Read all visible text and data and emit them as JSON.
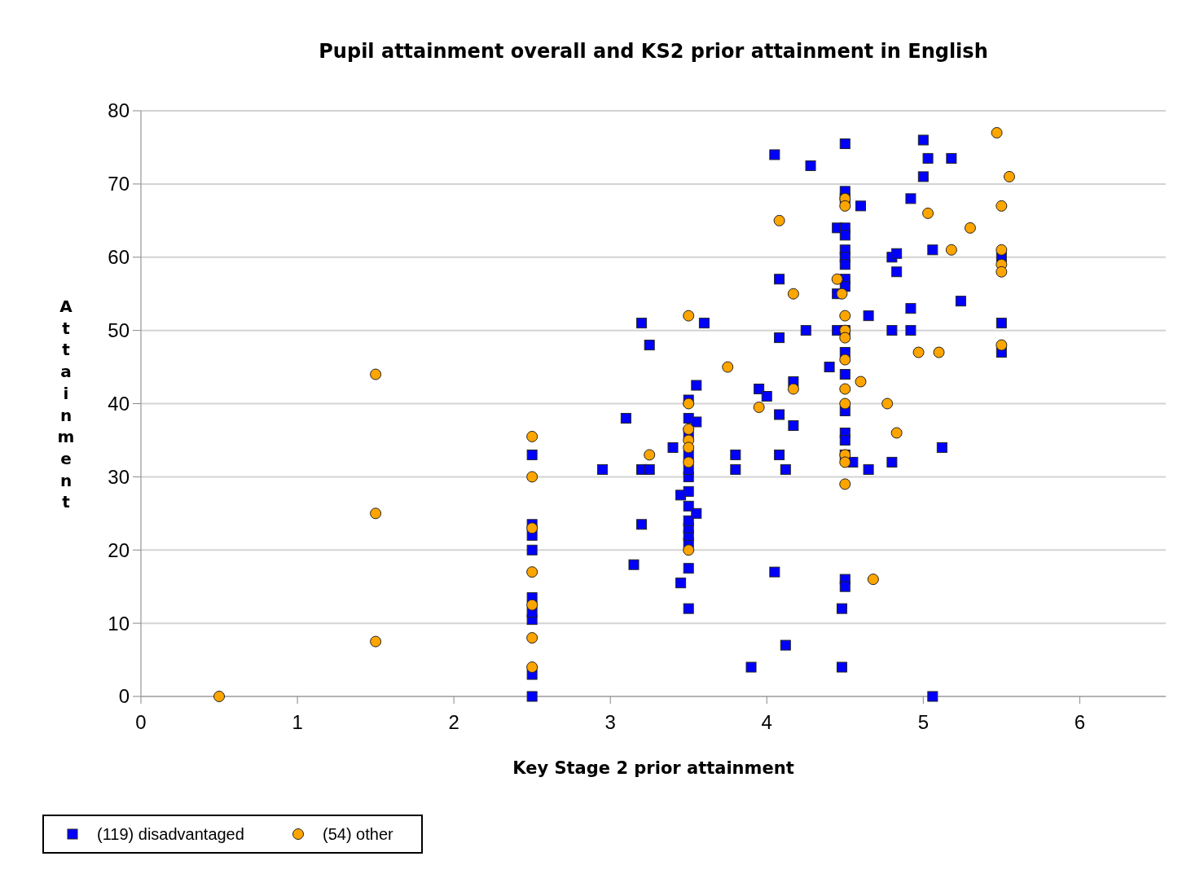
{
  "chart_data": {
    "type": "scatter",
    "title": "Pupil attainment overall and KS2 prior attainment in English",
    "xlabel": "Key Stage 2 prior attainment",
    "ylabel": "Attainment",
    "xlim": [
      0,
      6.55
    ],
    "xticks": [
      0,
      1,
      2,
      3,
      4,
      5,
      6
    ],
    "ylim": [
      0,
      80
    ],
    "yticks": [
      0,
      10,
      20,
      30,
      40,
      50,
      60,
      70,
      80
    ],
    "grid": "y",
    "legend": "bottom left",
    "series": [
      {
        "name": "(119) disadvantaged",
        "color": "#0000ff",
        "marker": "square",
        "x": [
          2.5,
          2.5,
          2.5,
          2.5,
          2.5,
          2.5,
          2.5,
          2.5,
          2.5,
          2.95,
          3.1,
          3.15,
          3.2,
          3.2,
          3.2,
          3.25,
          3.25,
          3.4,
          3.45,
          3.45,
          3.5,
          3.5,
          3.5,
          3.5,
          3.5,
          3.5,
          3.5,
          3.5,
          3.5,
          3.5,
          3.5,
          3.5,
          3.5,
          3.5,
          3.55,
          3.55,
          3.55,
          3.6,
          3.8,
          3.8,
          3.9,
          3.95,
          4.0,
          4.05,
          4.05,
          4.08,
          4.08,
          4.08,
          4.08,
          4.12,
          4.12,
          4.17,
          4.17,
          4.25,
          4.28,
          4.4,
          4.45,
          4.45,
          4.45,
          4.5,
          4.5,
          4.5,
          4.5,
          4.5,
          4.5,
          4.5,
          4.5,
          4.5,
          4.5,
          4.5,
          4.5,
          4.5,
          4.5,
          4.5,
          4.5,
          4.5,
          4.5,
          4.5,
          4.48,
          4.48,
          4.55,
          4.6,
          4.65,
          4.65,
          4.8,
          4.8,
          4.8,
          4.83,
          4.83,
          4.92,
          4.92,
          4.92,
          5.0,
          5.0,
          5.03,
          5.06,
          5.06,
          5.12,
          5.18,
          5.24,
          5.5,
          5.5,
          5.5
        ],
        "values": [
          0,
          3,
          10.5,
          11.5,
          13.5,
          20,
          22,
          23.5,
          33,
          31,
          38,
          18,
          31,
          23.5,
          51,
          31,
          48,
          34,
          27.5,
          15.5,
          12,
          17.5,
          21,
          22,
          23,
          24,
          26,
          28,
          30,
          31,
          33,
          36,
          38,
          40.5,
          25,
          37.5,
          42.5,
          51,
          33,
          31,
          4,
          42,
          41,
          74,
          17,
          57,
          49,
          38.5,
          33,
          31,
          7,
          43,
          37,
          50,
          72.5,
          45,
          55,
          64,
          50,
          75.5,
          69,
          68,
          64,
          63,
          61,
          60,
          59,
          57,
          56,
          50,
          47,
          44,
          39,
          36,
          35,
          33,
          16,
          15,
          12,
          4,
          32,
          67,
          52,
          31,
          60,
          50,
          32,
          60.5,
          58,
          68,
          53,
          50,
          76,
          71,
          73.5,
          61,
          0,
          34,
          73.5,
          54,
          60,
          51,
          47
        ]
      },
      {
        "name": "(54) other",
        "color": "#ffa500",
        "marker": "circle",
        "x": [
          0.5,
          1.5,
          1.5,
          1.5,
          2.5,
          2.5,
          2.5,
          2.5,
          2.5,
          2.5,
          2.5,
          3.25,
          3.5,
          3.5,
          3.5,
          3.5,
          3.5,
          3.5,
          3.5,
          3.75,
          3.95,
          4.08,
          4.17,
          4.17,
          4.45,
          4.48,
          4.5,
          4.5,
          4.5,
          4.5,
          4.5,
          4.5,
          4.5,
          4.5,
          4.5,
          4.5,
          4.5,
          4.6,
          4.68,
          4.77,
          4.83,
          4.97,
          5.03,
          5.1,
          5.18,
          5.3,
          5.47,
          5.5,
          5.5,
          5.5,
          5.5,
          5.5,
          5.55
        ],
        "values": [
          0,
          44,
          25,
          7.5,
          35.5,
          30,
          23,
          17,
          12.5,
          8,
          4,
          33,
          52,
          40,
          36.5,
          35,
          34,
          32,
          20,
          45,
          39.5,
          65,
          55,
          42,
          57,
          55,
          68,
          67,
          52,
          50,
          49,
          46,
          42,
          40,
          33,
          32,
          29,
          43,
          16,
          40,
          36,
          47,
          66,
          47,
          61,
          64,
          77,
          67,
          61,
          59,
          58,
          48,
          71
        ]
      }
    ]
  }
}
